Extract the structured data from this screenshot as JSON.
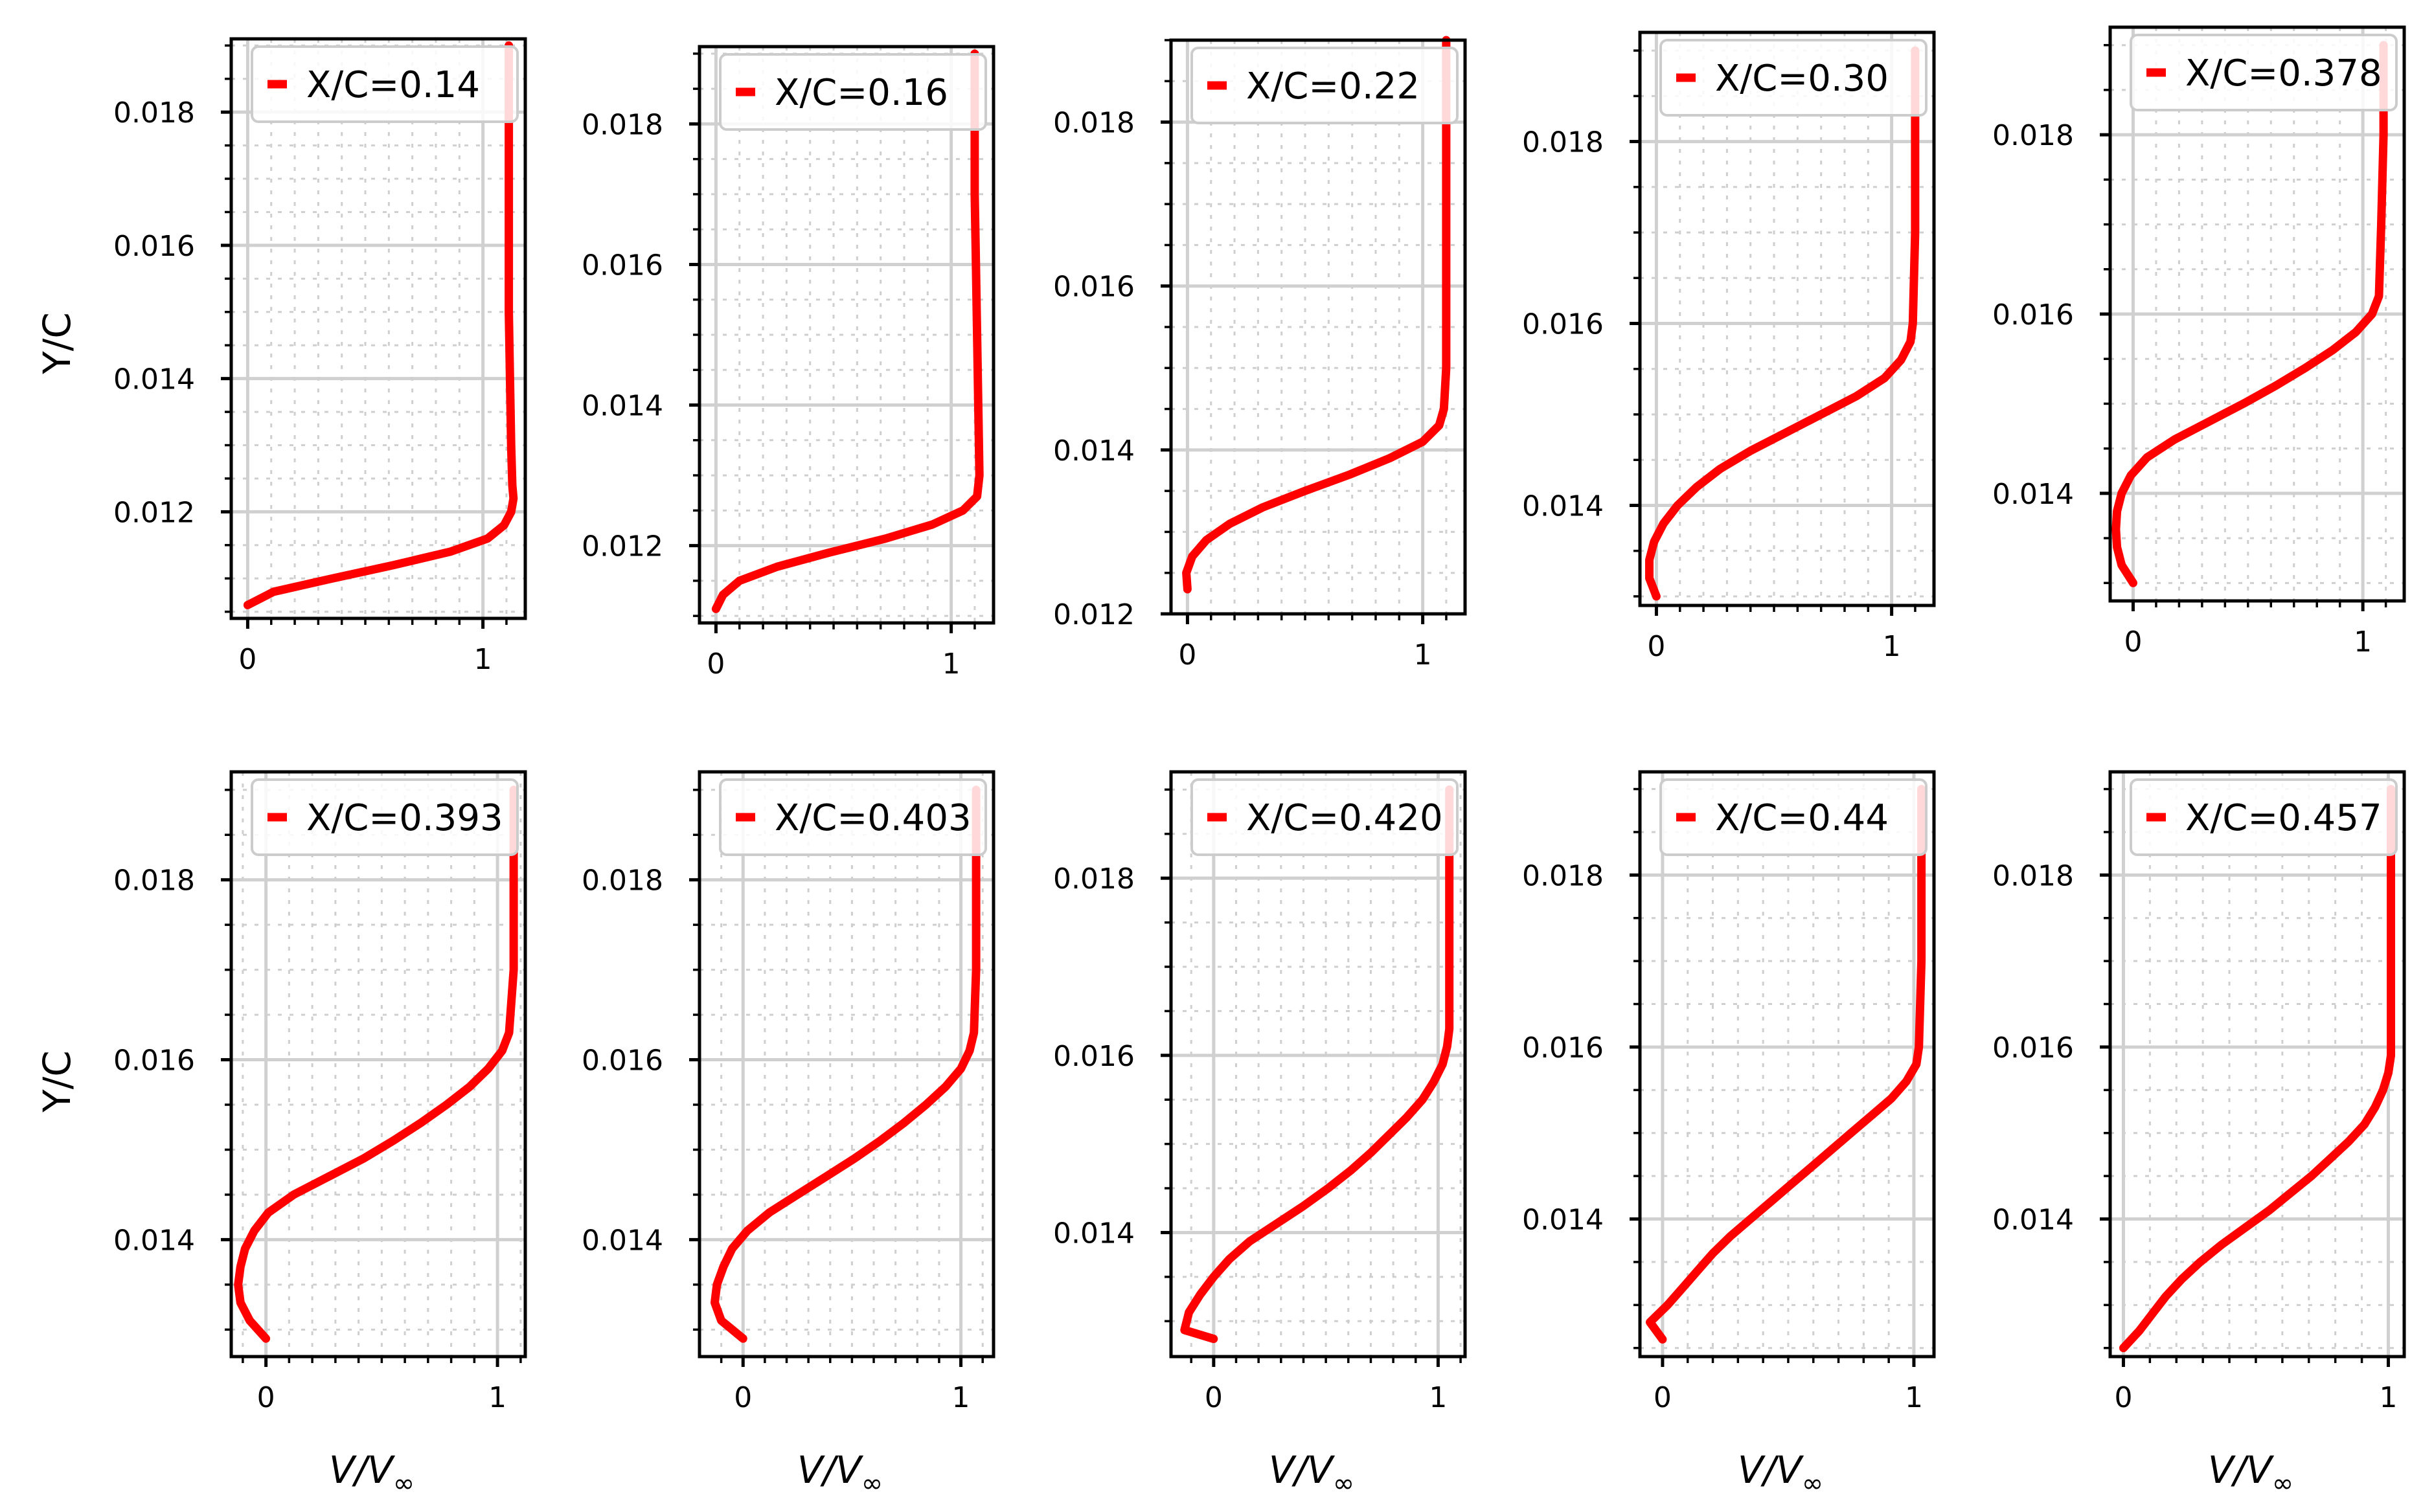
{
  "figure": {
    "ylabel": "Y/C",
    "xlabel": "V/V∞",
    "xlabel_main": "V/V",
    "xlabel_sub": "∞"
  },
  "colors": {
    "series": "#ff0000"
  },
  "chart_data": [
    {
      "type": "line",
      "legend": "X/C=0.14",
      "xlim": [
        -0.07,
        1.18
      ],
      "ylim": [
        0.0104,
        0.0191
      ],
      "xticks": [
        0,
        1
      ],
      "xtick_labels": [
        "0",
        "1"
      ],
      "yticks": [
        0.012,
        0.014,
        0.016,
        0.018
      ],
      "ytick_labels": [
        "0.012",
        "0.014",
        "0.016",
        "0.018"
      ],
      "y": [
        0.0106,
        0.0108,
        0.011,
        0.0112,
        0.0114,
        0.0116,
        0.0118,
        0.012,
        0.0122,
        0.0124,
        0.013,
        0.014,
        0.015,
        0.016,
        0.017,
        0.018,
        0.019
      ],
      "x": [
        0.0,
        0.11,
        0.36,
        0.62,
        0.86,
        1.02,
        1.09,
        1.12,
        1.13,
        1.125,
        1.12,
        1.115,
        1.11,
        1.11,
        1.11,
        1.11,
        1.11
      ]
    },
    {
      "type": "line",
      "legend": "X/C=0.16",
      "xlim": [
        -0.07,
        1.18
      ],
      "ylim": [
        0.0109,
        0.0191
      ],
      "xticks": [
        0,
        1
      ],
      "xtick_labels": [
        "0",
        "1"
      ],
      "yticks": [
        0.012,
        0.014,
        0.016,
        0.018
      ],
      "ytick_labels": [
        "0.012",
        "0.014",
        "0.016",
        "0.018"
      ],
      "y": [
        0.0111,
        0.0113,
        0.0115,
        0.0117,
        0.0119,
        0.0121,
        0.0123,
        0.0125,
        0.0127,
        0.013,
        0.014,
        0.015,
        0.016,
        0.017,
        0.018,
        0.019
      ],
      "x": [
        0.0,
        0.03,
        0.1,
        0.26,
        0.48,
        0.72,
        0.92,
        1.05,
        1.11,
        1.12,
        1.115,
        1.11,
        1.105,
        1.1,
        1.1,
        1.1
      ]
    },
    {
      "type": "line",
      "legend": "X/C=0.22",
      "xlim": [
        -0.07,
        1.18
      ],
      "ylim": [
        0.012,
        0.019
      ],
      "xticks": [
        0,
        1
      ],
      "xtick_labels": [
        "0",
        "1"
      ],
      "yticks": [
        0.012,
        0.014,
        0.016,
        0.018
      ],
      "ytick_labels": [
        "0.012",
        "0.014",
        "0.016",
        "0.018"
      ],
      "y": [
        0.0123,
        0.0125,
        0.0127,
        0.0129,
        0.0131,
        0.0133,
        0.0135,
        0.0137,
        0.0139,
        0.0141,
        0.0143,
        0.0145,
        0.015,
        0.016,
        0.017,
        0.018,
        0.019
      ],
      "x": [
        0.0,
        -0.005,
        0.02,
        0.08,
        0.18,
        0.32,
        0.5,
        0.69,
        0.86,
        1.0,
        1.07,
        1.09,
        1.1,
        1.1,
        1.1,
        1.1,
        1.1
      ]
    },
    {
      "type": "line",
      "legend": "X/C=0.30",
      "xlim": [
        -0.07,
        1.18
      ],
      "ylim": [
        0.0129,
        0.0192
      ],
      "xticks": [
        0,
        1
      ],
      "xtick_labels": [
        "0",
        "1"
      ],
      "yticks": [
        0.014,
        0.016,
        0.018
      ],
      "ytick_labels": [
        "0.014",
        "0.016",
        "0.018"
      ],
      "y": [
        0.013,
        0.0132,
        0.0134,
        0.0136,
        0.0138,
        0.014,
        0.0142,
        0.0144,
        0.0146,
        0.0148,
        0.015,
        0.0152,
        0.0154,
        0.0156,
        0.0158,
        0.016,
        0.017,
        0.018,
        0.019
      ],
      "x": [
        0.0,
        -0.03,
        -0.03,
        -0.01,
        0.03,
        0.09,
        0.17,
        0.27,
        0.4,
        0.55,
        0.7,
        0.85,
        0.97,
        1.04,
        1.08,
        1.09,
        1.1,
        1.1,
        1.1
      ]
    },
    {
      "type": "line",
      "legend": "X/C=0.378",
      "xlim": [
        -0.1,
        1.18
      ],
      "ylim": [
        0.0128,
        0.0192
      ],
      "xticks": [
        0,
        1
      ],
      "xtick_labels": [
        "0",
        "1"
      ],
      "yticks": [
        0.014,
        0.016,
        0.018
      ],
      "ytick_labels": [
        "0.014",
        "0.016",
        "0.018"
      ],
      "y": [
        0.013,
        0.0132,
        0.0134,
        0.0136,
        0.0138,
        0.014,
        0.0142,
        0.0144,
        0.0146,
        0.0148,
        0.015,
        0.0152,
        0.0154,
        0.0156,
        0.0158,
        0.016,
        0.0162,
        0.017,
        0.018,
        0.019
      ],
      "x": [
        0.0,
        -0.05,
        -0.07,
        -0.075,
        -0.07,
        -0.05,
        -0.01,
        0.06,
        0.18,
        0.33,
        0.48,
        0.62,
        0.75,
        0.87,
        0.97,
        1.04,
        1.07,
        1.08,
        1.09,
        1.09
      ]
    },
    {
      "type": "line",
      "legend": "X/C=0.393",
      "xlim": [
        -0.15,
        1.12
      ],
      "ylim": [
        0.0127,
        0.0192
      ],
      "xticks": [
        0,
        1
      ],
      "xtick_labels": [
        "0",
        "1"
      ],
      "yticks": [
        0.014,
        0.016,
        0.018
      ],
      "ytick_labels": [
        "0.014",
        "0.016",
        "0.018"
      ],
      "y": [
        0.0129,
        0.0131,
        0.0133,
        0.0135,
        0.0137,
        0.0139,
        0.0141,
        0.0143,
        0.0145,
        0.0147,
        0.0149,
        0.0151,
        0.0153,
        0.0155,
        0.0157,
        0.0159,
        0.0161,
        0.0163,
        0.017,
        0.018,
        0.019
      ],
      "x": [
        0.0,
        -0.07,
        -0.11,
        -0.12,
        -0.11,
        -0.09,
        -0.05,
        0.01,
        0.12,
        0.27,
        0.42,
        0.55,
        0.67,
        0.78,
        0.88,
        0.96,
        1.02,
        1.05,
        1.07,
        1.07,
        1.07
      ]
    },
    {
      "type": "line",
      "legend": "X/C=0.403",
      "xlim": [
        -0.2,
        1.15
      ],
      "ylim": [
        0.0127,
        0.0192
      ],
      "xticks": [
        0,
        1
      ],
      "xtick_labels": [
        "0",
        "1"
      ],
      "yticks": [
        0.014,
        0.016,
        0.018
      ],
      "ytick_labels": [
        "0.014",
        "0.016",
        "0.018"
      ],
      "y": [
        0.0129,
        0.0131,
        0.0133,
        0.0135,
        0.0137,
        0.0139,
        0.0141,
        0.0143,
        0.0145,
        0.0147,
        0.0149,
        0.0151,
        0.0153,
        0.0155,
        0.0157,
        0.0159,
        0.0161,
        0.0163,
        0.017,
        0.018,
        0.019
      ],
      "x": [
        0.0,
        -0.1,
        -0.13,
        -0.12,
        -0.09,
        -0.05,
        0.02,
        0.12,
        0.25,
        0.38,
        0.51,
        0.63,
        0.74,
        0.84,
        0.93,
        1.0,
        1.04,
        1.06,
        1.07,
        1.07,
        1.07
      ]
    },
    {
      "type": "line",
      "legend": "X/C=0.420",
      "xlim": [
        -0.19,
        1.12
      ],
      "ylim": [
        0.0126,
        0.0192
      ],
      "xticks": [
        0,
        1
      ],
      "xtick_labels": [
        "0",
        "1"
      ],
      "yticks": [
        0.014,
        0.016,
        0.018
      ],
      "ytick_labels": [
        "0.014",
        "0.016",
        "0.018"
      ],
      "y": [
        0.0128,
        0.0129,
        0.0131,
        0.0133,
        0.0135,
        0.0137,
        0.0139,
        0.0141,
        0.0143,
        0.0145,
        0.0147,
        0.0149,
        0.0151,
        0.0153,
        0.0155,
        0.0157,
        0.0159,
        0.0161,
        0.0163,
        0.017,
        0.018,
        0.019
      ],
      "x": [
        0.0,
        -0.13,
        -0.11,
        -0.06,
        0.0,
        0.07,
        0.16,
        0.28,
        0.4,
        0.51,
        0.61,
        0.7,
        0.78,
        0.86,
        0.93,
        0.98,
        1.02,
        1.04,
        1.05,
        1.05,
        1.05,
        1.05
      ]
    },
    {
      "type": "line",
      "legend": "X/C=0.44",
      "xlim": [
        -0.09,
        1.08
      ],
      "ylim": [
        0.0124,
        0.0192
      ],
      "xticks": [
        0,
        1
      ],
      "xtick_labels": [
        "0",
        "1"
      ],
      "yticks": [
        0.014,
        0.016,
        0.018
      ],
      "ytick_labels": [
        "0.014",
        "0.016",
        "0.018"
      ],
      "y": [
        0.0126,
        0.0128,
        0.013,
        0.0132,
        0.0134,
        0.0136,
        0.0138,
        0.014,
        0.0142,
        0.0144,
        0.0146,
        0.0148,
        0.015,
        0.0152,
        0.0154,
        0.0156,
        0.0158,
        0.016,
        0.017,
        0.018,
        0.019
      ],
      "x": [
        0.0,
        -0.05,
        0.02,
        0.08,
        0.14,
        0.2,
        0.27,
        0.35,
        0.43,
        0.51,
        0.59,
        0.67,
        0.75,
        0.83,
        0.91,
        0.97,
        1.01,
        1.02,
        1.03,
        1.03,
        1.03
      ]
    },
    {
      "type": "line",
      "legend": "X/C=0.457",
      "xlim": [
        -0.05,
        1.06
      ],
      "ylim": [
        0.0124,
        0.0192
      ],
      "xticks": [
        0,
        1
      ],
      "xtick_labels": [
        "0",
        "1"
      ],
      "yticks": [
        0.014,
        0.016,
        0.018
      ],
      "ytick_labels": [
        "0.014",
        "0.016",
        "0.018"
      ],
      "y": [
        0.0125,
        0.0127,
        0.0129,
        0.0131,
        0.0133,
        0.0135,
        0.0137,
        0.0139,
        0.0141,
        0.0143,
        0.0145,
        0.0147,
        0.0149,
        0.0151,
        0.0153,
        0.0155,
        0.0157,
        0.0159,
        0.017,
        0.018,
        0.019
      ],
      "x": [
        0.0,
        0.06,
        0.11,
        0.16,
        0.22,
        0.29,
        0.37,
        0.46,
        0.55,
        0.63,
        0.71,
        0.78,
        0.85,
        0.91,
        0.95,
        0.98,
        1.0,
        1.01,
        1.01,
        1.01,
        1.01
      ]
    }
  ]
}
